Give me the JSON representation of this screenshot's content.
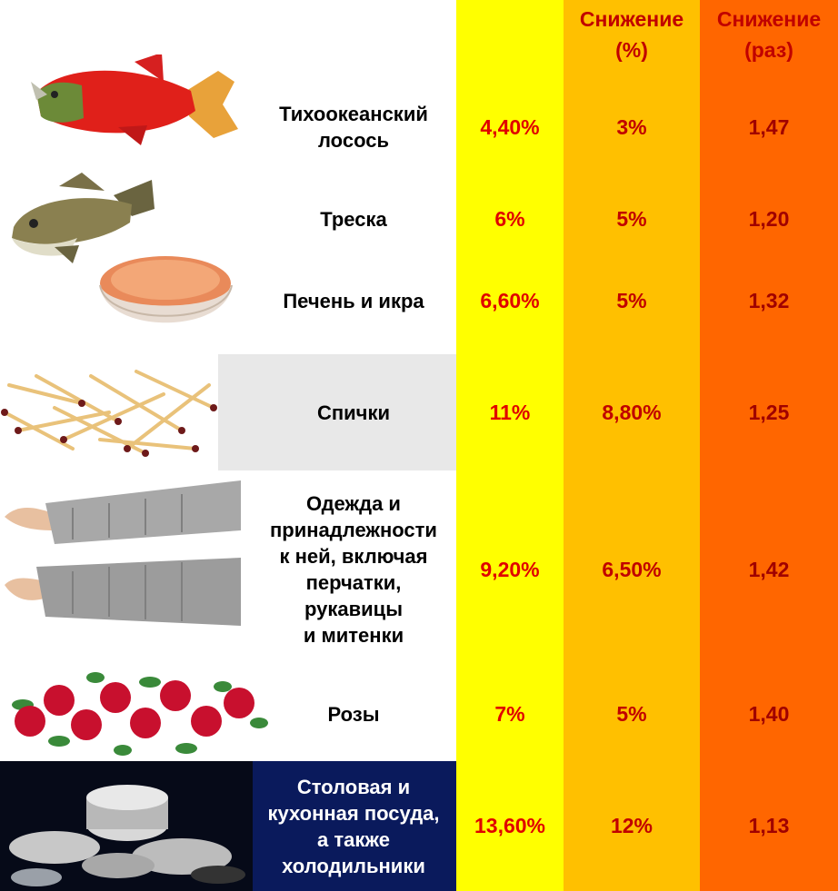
{
  "headers": {
    "col2": "Снижение\n(%)",
    "col3": "Снижение\n(раз)"
  },
  "colors": {
    "yellow_column": "#ffff00",
    "amber_column": "#ffc000",
    "orange_column": "#ff6600",
    "value_red": "#e00000",
    "header_red": "#c00000",
    "matches_row_bg": "#e8e8e8",
    "dishes_row_bg": "#0a1a5c"
  },
  "rows": [
    {
      "label": "Тихоокеанский\nлосось",
      "v1": "4,40%",
      "v2": "3%",
      "v3": "1,47",
      "icon": "salmon-image"
    },
    {
      "label": "Треска",
      "v1": "6%",
      "v2": "5%",
      "v3": "1,20",
      "icon": "cod-image"
    },
    {
      "label": "Печень и икра",
      "v1": "6,60%",
      "v2": "5%",
      "v3": "1,32",
      "icon": "caviar-bowl-image"
    },
    {
      "label": "Спички",
      "v1": "11%",
      "v2": "8,80%",
      "v3": "1,25",
      "icon": "matches-image"
    },
    {
      "label": "Одежда и\nпринадлежности\nк ней, включая\nперчатки,\nрукавицы\nи митенки",
      "v1": "9,20%",
      "v2": "6,50%",
      "v3": "1,42",
      "icon": "knitted-gloves-image"
    },
    {
      "label": "Розы",
      "v1": "7%",
      "v2": "5%",
      "v3": "1,40",
      "icon": "roses-image"
    },
    {
      "label": "Столовая и\nкухонная посуда,\nа также\nхолодильники",
      "v1": "13,60%",
      "v2": "12%",
      "v3": "1,13",
      "icon": "cookware-image"
    }
  ]
}
